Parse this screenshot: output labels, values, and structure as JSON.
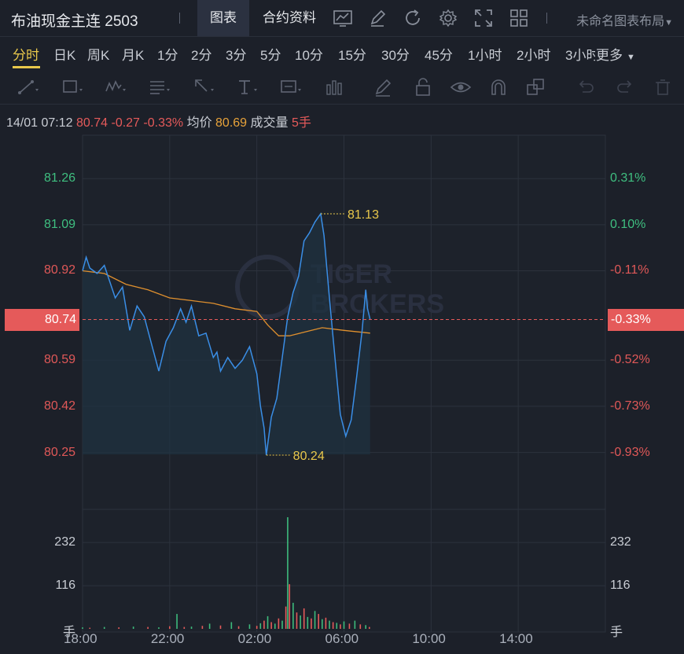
{
  "header": {
    "title": "布油现金主连 2503",
    "tabs": [
      {
        "label": "图表",
        "active": true
      },
      {
        "label": "合约资料",
        "active": false
      }
    ],
    "layout_label": "未命名图表布局",
    "icons": [
      "indicator-icon",
      "draw-pen-icon",
      "refresh-icon",
      "settings-icon",
      "fullscreen-icon",
      "grid-layout-icon"
    ]
  },
  "periods": {
    "items": [
      "分时",
      "日K",
      "周K",
      "月K",
      "1分",
      "2分",
      "3分",
      "5分",
      "10分",
      "15分",
      "30分",
      "45分",
      "1小时",
      "2小时",
      "3小时"
    ],
    "more": "更多",
    "active": "分时"
  },
  "toolbar": {
    "icons": [
      "trendline-tool-icon",
      "rectangle-tool-icon",
      "pattern-tool-icon",
      "fibonacci-tool-icon",
      "arrow-tool-icon",
      "text-tool-icon",
      "annotation-tool-icon",
      "bar-tool-icon",
      "brush-icon",
      "lock-icon",
      "eye-icon",
      "magnet-icon",
      "layers-icon",
      "undo-icon",
      "redo-icon",
      "delete-icon"
    ]
  },
  "info": {
    "datetime": "14/01 07:12",
    "price": "80.74",
    "change": "-0.27",
    "change_pct": "-0.33%",
    "avg_label": "均价",
    "avg_value": "80.69",
    "volume_label": "成交量",
    "volume_value": "5手"
  },
  "colors": {
    "up": "#e55a5a",
    "down": "#3dbb7c",
    "line": "#3a8ee6",
    "avg": "#e0902e",
    "accent": "#e9c84b"
  },
  "watermark": "TIGER BROKERS",
  "chart_data": {
    "type": "line",
    "title": "",
    "x_ticks": [
      "18:00",
      "22:00",
      "02:00",
      "06:00",
      "10:00",
      "14:00"
    ],
    "y_ticks_left": [
      {
        "v": 81.26,
        "t": "81.26",
        "c": "down"
      },
      {
        "v": 81.09,
        "t": "81.09",
        "c": "down"
      },
      {
        "v": 80.92,
        "t": "80.92",
        "c": "up"
      },
      {
        "v": 80.59,
        "t": "80.59",
        "c": "up"
      },
      {
        "v": 80.42,
        "t": "80.42",
        "c": "up"
      },
      {
        "v": 80.25,
        "t": "80.25",
        "c": "up"
      }
    ],
    "y_ticks_right": [
      {
        "v": 81.26,
        "t": "0.31%",
        "c": "down"
      },
      {
        "v": 81.09,
        "t": "0.10%",
        "c": "down"
      },
      {
        "v": 80.92,
        "t": "-0.11%",
        "c": "up"
      },
      {
        "v": 80.59,
        "t": "-0.52%",
        "c": "up"
      },
      {
        "v": 80.42,
        "t": "-0.73%",
        "c": "up"
      },
      {
        "v": 80.25,
        "t": "-0.93%",
        "c": "up"
      }
    ],
    "current": {
      "price": 80.74,
      "label_left": "80.74",
      "label_right": "-0.33%"
    },
    "high": {
      "time": "04:56",
      "value": 81.13,
      "label": "81.13"
    },
    "low": {
      "time": "02:26",
      "value": 80.24,
      "label": "80.24"
    },
    "ylim": [
      80.04,
      81.42
    ],
    "price_series": [
      [
        "18:00",
        80.92
      ],
      [
        "18:10",
        80.97
      ],
      [
        "18:20",
        80.93
      ],
      [
        "18:40",
        80.91
      ],
      [
        "19:00",
        80.94
      ],
      [
        "19:10",
        80.9
      ],
      [
        "19:30",
        80.82
      ],
      [
        "19:50",
        80.86
      ],
      [
        "20:10",
        80.7
      ],
      [
        "20:30",
        80.79
      ],
      [
        "20:50",
        80.75
      ],
      [
        "21:10",
        80.65
      ],
      [
        "21:30",
        80.55
      ],
      [
        "21:50",
        80.66
      ],
      [
        "22:10",
        80.71
      ],
      [
        "22:30",
        80.78
      ],
      [
        "22:45",
        80.73
      ],
      [
        "23:00",
        80.79
      ],
      [
        "23:20",
        80.68
      ],
      [
        "23:40",
        80.69
      ],
      [
        "00:00",
        80.6
      ],
      [
        "00:10",
        80.62
      ],
      [
        "00:20",
        80.55
      ],
      [
        "00:40",
        80.6
      ],
      [
        "01:00",
        80.56
      ],
      [
        "01:20",
        80.59
      ],
      [
        "01:40",
        80.64
      ],
      [
        "02:00",
        80.54
      ],
      [
        "02:10",
        80.42
      ],
      [
        "02:20",
        80.34
      ],
      [
        "02:26",
        80.24
      ],
      [
        "02:40",
        80.38
      ],
      [
        "02:55",
        80.45
      ],
      [
        "03:10",
        80.6
      ],
      [
        "03:25",
        80.75
      ],
      [
        "03:40",
        80.84
      ],
      [
        "03:55",
        80.9
      ],
      [
        "04:10",
        81.03
      ],
      [
        "04:25",
        81.06
      ],
      [
        "04:40",
        81.1
      ],
      [
        "04:56",
        81.13
      ],
      [
        "05:05",
        81.05
      ],
      [
        "05:20",
        80.82
      ],
      [
        "05:35",
        80.6
      ],
      [
        "05:50",
        80.39
      ],
      [
        "06:05",
        80.31
      ],
      [
        "06:20",
        80.37
      ],
      [
        "06:35",
        80.53
      ],
      [
        "06:50",
        80.7
      ],
      [
        "07:00",
        80.85
      ],
      [
        "07:05",
        80.78
      ],
      [
        "07:12",
        80.74
      ]
    ],
    "avg_series": [
      [
        "18:00",
        80.92
      ],
      [
        "19:00",
        80.91
      ],
      [
        "20:00",
        80.87
      ],
      [
        "21:00",
        80.85
      ],
      [
        "22:00",
        80.82
      ],
      [
        "23:00",
        80.81
      ],
      [
        "00:00",
        80.8
      ],
      [
        "01:00",
        80.78
      ],
      [
        "02:00",
        80.77
      ],
      [
        "02:30",
        80.72
      ],
      [
        "03:00",
        80.68
      ],
      [
        "03:30",
        80.68
      ],
      [
        "04:00",
        80.69
      ],
      [
        "05:00",
        80.71
      ],
      [
        "06:00",
        80.7
      ],
      [
        "07:12",
        80.69
      ]
    ],
    "volume_ticks": [
      {
        "v": 232,
        "t": "232"
      },
      {
        "v": 116,
        "t": "116"
      }
    ],
    "volume_unit": "手",
    "volume_max_axis": 300,
    "volume_series": [
      [
        "18:00",
        4
      ],
      [
        "18:20",
        3
      ],
      [
        "19:00",
        5
      ],
      [
        "19:40",
        4
      ],
      [
        "20:20",
        6
      ],
      [
        "21:00",
        5
      ],
      [
        "21:30",
        4
      ],
      [
        "22:00",
        7
      ],
      [
        "22:20",
        40
      ],
      [
        "22:40",
        5
      ],
      [
        "23:00",
        6
      ],
      [
        "23:30",
        8
      ],
      [
        "23:50",
        14
      ],
      [
        "00:20",
        9
      ],
      [
        "00:50",
        18
      ],
      [
        "01:10",
        7
      ],
      [
        "01:40",
        12
      ],
      [
        "02:00",
        8
      ],
      [
        "02:10",
        15
      ],
      [
        "02:20",
        22
      ],
      [
        "02:30",
        34
      ],
      [
        "02:40",
        18
      ],
      [
        "02:50",
        14
      ],
      [
        "03:00",
        28
      ],
      [
        "03:10",
        22
      ],
      [
        "03:20",
        60
      ],
      [
        "03:25",
        300
      ],
      [
        "03:30",
        120
      ],
      [
        "03:40",
        70
      ],
      [
        "03:50",
        44
      ],
      [
        "04:00",
        36
      ],
      [
        "04:10",
        55
      ],
      [
        "04:20",
        32
      ],
      [
        "04:30",
        28
      ],
      [
        "04:40",
        48
      ],
      [
        "04:50",
        40
      ],
      [
        "05:00",
        26
      ],
      [
        "05:10",
        30
      ],
      [
        "05:20",
        22
      ],
      [
        "05:30",
        18
      ],
      [
        "05:40",
        16
      ],
      [
        "05:50",
        12
      ],
      [
        "06:00",
        20
      ],
      [
        "06:15",
        14
      ],
      [
        "06:30",
        22
      ],
      [
        "06:45",
        12
      ],
      [
        "07:00",
        10
      ],
      [
        "07:10",
        5
      ]
    ]
  }
}
